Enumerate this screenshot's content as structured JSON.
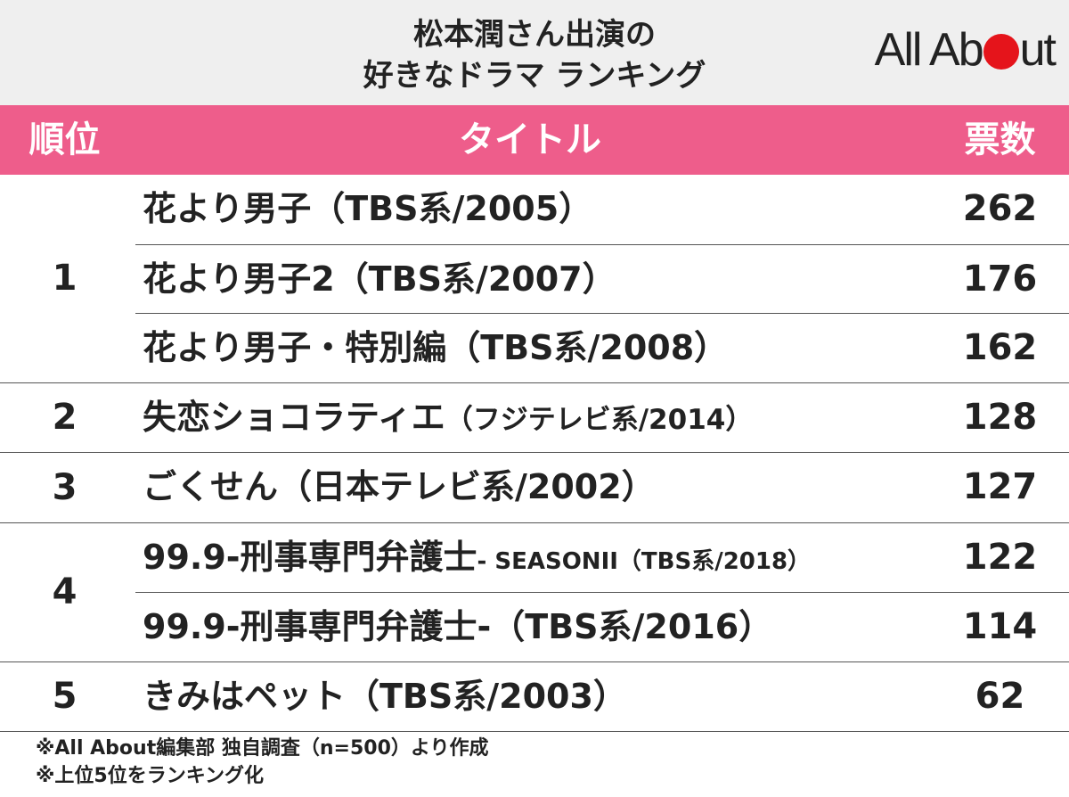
{
  "header": {
    "title_line1": "松本潤さん出演の",
    "title_line2": "好きなドラマ ランキング",
    "logo_left": "All Ab",
    "logo_right": "ut"
  },
  "table": {
    "columns": {
      "rank": "順位",
      "title": "タイトル",
      "votes": "票数"
    },
    "groups": [
      {
        "rank": "1",
        "rows": [
          {
            "title": "花より男子（TBS系/2005）",
            "votes": "262"
          },
          {
            "title": "花より男子2（TBS系/2007）",
            "votes": "176"
          },
          {
            "title": "花より男子・特別編（TBS系/2008）",
            "votes": "162"
          }
        ]
      },
      {
        "rank": "2",
        "rows": [
          {
            "title_main": "失恋ショコラティエ",
            "title_sub": "（フジテレビ系/2014）",
            "votes": "128"
          }
        ]
      },
      {
        "rank": "3",
        "rows": [
          {
            "title": "ごくせん（日本テレビ系/2002）",
            "votes": "127"
          }
        ]
      },
      {
        "rank": "4",
        "rows": [
          {
            "title_main": "99.9-刑事専門弁護士",
            "title_sub": "- SEASONII（TBS系/2018）",
            "votes": "122"
          },
          {
            "title": "99.9-刑事専門弁護士-（TBS系/2016）",
            "votes": "114"
          }
        ]
      },
      {
        "rank": "5",
        "rows": [
          {
            "title": "きみはペット（TBS系/2003）",
            "votes": "62"
          }
        ]
      }
    ]
  },
  "notes": {
    "line1": "※All About編集部 独自調査（n=500）より作成",
    "line2": "※上位5位をランキング化"
  },
  "colors": {
    "header_bg": "#efefef",
    "table_head_bg": "#ee5d8b",
    "logo_dot": "#e5141b"
  }
}
